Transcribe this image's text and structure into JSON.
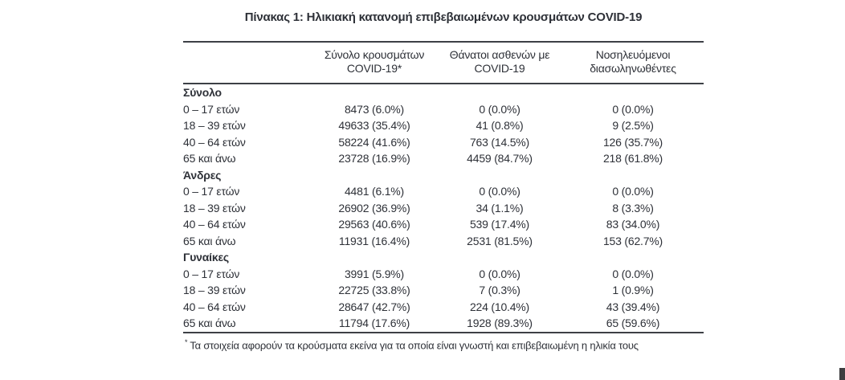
{
  "title": "Πίνακας 1: Ηλικιακή κατανομή επιβεβαιωμένων κρουσμάτων COVID-19",
  "columns": [
    {
      "line1": "Σύνολο κρουσμάτων",
      "line2": "COVID-19*"
    },
    {
      "line1": "Θάνατοι ασθενών με",
      "line2": "COVID-19"
    },
    {
      "line1": "Νοσηλευόμενοι",
      "line2": "διασωληνωθέντες"
    }
  ],
  "sections": [
    {
      "label": "Σύνολο",
      "rows": [
        {
          "age": "0 – 17 ετών",
          "cases": "8473 (6.0%)",
          "deaths": "0 (0.0%)",
          "intubated": "0 (0.0%)"
        },
        {
          "age": "18 – 39 ετών",
          "cases": "49633 (35.4%)",
          "deaths": "41 (0.8%)",
          "intubated": "9 (2.5%)"
        },
        {
          "age": "40 – 64 ετών",
          "cases": "58224 (41.6%)",
          "deaths": "763 (14.5%)",
          "intubated": "126 (35.7%)"
        },
        {
          "age": "65 και άνω",
          "cases": "23728 (16.9%)",
          "deaths": "4459 (84.7%)",
          "intubated": "218 (61.8%)"
        }
      ]
    },
    {
      "label": "Άνδρες",
      "rows": [
        {
          "age": "0 – 17 ετών",
          "cases": "4481 (6.1%)",
          "deaths": "0 (0.0%)",
          "intubated": "0 (0.0%)"
        },
        {
          "age": "18 – 39 ετών",
          "cases": "26902 (36.9%)",
          "deaths": "34 (1.1%)",
          "intubated": "8 (3.3%)"
        },
        {
          "age": "40 – 64 ετών",
          "cases": "29563 (40.6%)",
          "deaths": "539 (17.4%)",
          "intubated": "83 (34.0%)"
        },
        {
          "age": "65 και άνω",
          "cases": "11931 (16.4%)",
          "deaths": "2531 (81.5%)",
          "intubated": "153 (62.7%)"
        }
      ]
    },
    {
      "label": "Γυναίκες",
      "rows": [
        {
          "age": "0 – 17 ετών",
          "cases": "3991 (5.9%)",
          "deaths": "0 (0.0%)",
          "intubated": "0 (0.0%)"
        },
        {
          "age": "18 – 39 ετών",
          "cases": "22725 (33.8%)",
          "deaths": "7 (0.3%)",
          "intubated": "1 (0.9%)"
        },
        {
          "age": "40 – 64 ετών",
          "cases": "28647 (42.7%)",
          "deaths": "224 (10.4%)",
          "intubated": "43 (39.4%)"
        },
        {
          "age": "65 και άνω",
          "cases": "11794 (17.6%)",
          "deaths": "1928 (89.3%)",
          "intubated": "65 (59.6%)"
        }
      ]
    }
  ],
  "footnote": {
    "marker": "*",
    "text": "Τα στοιχεία αφορούν τα κρούσματα εκείνα για τα οποία είναι γνωστή και επιβεβαιωμένη η ηλικία τους"
  },
  "colors": {
    "background": "#ffffff",
    "text": "#2e3138",
    "rule": "#3d4046",
    "corner_artifact": "#3e3e40"
  }
}
